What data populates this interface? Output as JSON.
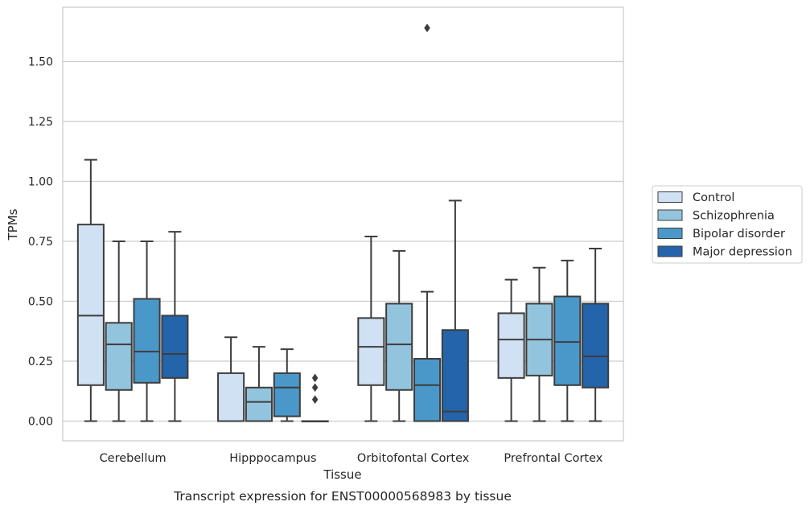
{
  "chart_data": {
    "type": "box",
    "title": "Transcript expression for ENST00000568983 by tissue",
    "xlabel": "Tissue",
    "ylabel": "TPMs",
    "ylim": [
      -0.08,
      1.73
    ],
    "yticks": [
      0.0,
      0.25,
      0.5,
      0.75,
      1.0,
      1.25,
      1.5
    ],
    "ytick_labels": [
      "0.00",
      "0.25",
      "0.50",
      "0.75",
      "1.00",
      "1.25",
      "1.50"
    ],
    "grid": "horizontal",
    "legend_position": "right",
    "categories": [
      "Cerebellum",
      "Hipppocampus",
      "Orbitofontal Cortex",
      "Prefrontal Cortex"
    ],
    "series": [
      {
        "name": "Control",
        "color": "#cfe1f2",
        "boxes": [
          {
            "whislo": 0.0,
            "q1": 0.15,
            "med": 0.44,
            "q3": 0.82,
            "whishi": 1.09,
            "fliers": []
          },
          {
            "whislo": 0.0,
            "q1": 0.0,
            "med": 0.0,
            "q3": 0.2,
            "whishi": 0.35,
            "fliers": []
          },
          {
            "whislo": 0.0,
            "q1": 0.15,
            "med": 0.31,
            "q3": 0.43,
            "whishi": 0.77,
            "fliers": []
          },
          {
            "whislo": 0.0,
            "q1": 0.18,
            "med": 0.34,
            "q3": 0.45,
            "whishi": 0.59,
            "fliers": []
          }
        ]
      },
      {
        "name": "Schizophrenia",
        "color": "#93c4de",
        "boxes": [
          {
            "whislo": 0.0,
            "q1": 0.13,
            "med": 0.32,
            "q3": 0.41,
            "whishi": 0.75,
            "fliers": []
          },
          {
            "whislo": 0.0,
            "q1": 0.0,
            "med": 0.08,
            "q3": 0.14,
            "whishi": 0.31,
            "fliers": []
          },
          {
            "whislo": 0.0,
            "q1": 0.13,
            "med": 0.32,
            "q3": 0.49,
            "whishi": 0.71,
            "fliers": []
          },
          {
            "whislo": 0.0,
            "q1": 0.19,
            "med": 0.34,
            "q3": 0.49,
            "whishi": 0.64,
            "fliers": []
          }
        ]
      },
      {
        "name": "Bipolar disorder",
        "color": "#4a98c9",
        "boxes": [
          {
            "whislo": 0.0,
            "q1": 0.16,
            "med": 0.29,
            "q3": 0.51,
            "whishi": 0.75,
            "fliers": []
          },
          {
            "whislo": 0.0,
            "q1": 0.02,
            "med": 0.14,
            "q3": 0.2,
            "whishi": 0.3,
            "fliers": []
          },
          {
            "whislo": 0.0,
            "q1": 0.0,
            "med": 0.15,
            "q3": 0.26,
            "whishi": 0.54,
            "fliers": [
              1.64
            ]
          },
          {
            "whislo": 0.0,
            "q1": 0.15,
            "med": 0.33,
            "q3": 0.52,
            "whishi": 0.67,
            "fliers": []
          }
        ]
      },
      {
        "name": "Major depression",
        "color": "#2364aa",
        "boxes": [
          {
            "whislo": 0.0,
            "q1": 0.18,
            "med": 0.28,
            "q3": 0.44,
            "whishi": 0.79,
            "fliers": []
          },
          {
            "whislo": 0.0,
            "q1": 0.0,
            "med": 0.0,
            "q3": 0.0,
            "whishi": 0.0,
            "fliers": [
              0.09,
              0.14,
              0.18
            ]
          },
          {
            "whislo": 0.0,
            "q1": 0.0,
            "med": 0.04,
            "q3": 0.38,
            "whishi": 0.92,
            "fliers": []
          },
          {
            "whislo": 0.0,
            "q1": 0.14,
            "med": 0.27,
            "q3": 0.49,
            "whishi": 0.72,
            "fliers": []
          }
        ]
      }
    ]
  }
}
